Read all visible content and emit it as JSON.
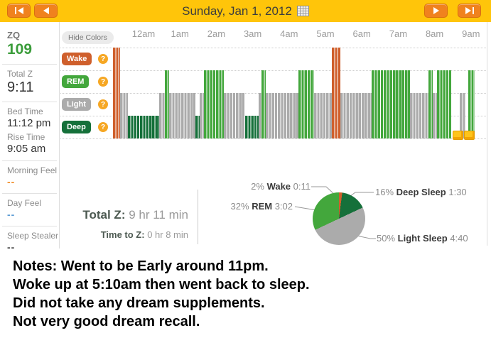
{
  "topbar": {
    "date": "Sunday, Jan 1, 2012"
  },
  "sidebar": {
    "stats": [
      {
        "id": "zq",
        "label": "ZQ",
        "value": "109",
        "style": "zq",
        "divider_before": false
      },
      {
        "id": "total-z",
        "label": "Total Z",
        "value": "9:11",
        "style": "big",
        "divider_before": true
      },
      {
        "id": "bed-time",
        "label": "Bed Time",
        "value": "11:12 pm",
        "style": "time",
        "divider_before": true
      },
      {
        "id": "rise-time",
        "label": "Rise Time",
        "value": "9:05 am",
        "style": "time",
        "divider_before": false
      },
      {
        "id": "morning-feel",
        "label": "Morning Feel",
        "value": "--",
        "style": "feel-orange",
        "divider_before": true
      },
      {
        "id": "day-feel",
        "label": "Day Feel",
        "value": "--",
        "style": "feel-blue",
        "divider_before": true
      },
      {
        "id": "sleep-stealer",
        "label": "Sleep Stealer",
        "value": "--",
        "style": "feel-dark",
        "divider_before": true
      }
    ]
  },
  "chart": {
    "hide_colors_label": "Hide Colors",
    "hours": [
      "12am",
      "1am",
      "2am",
      "3am",
      "4am",
      "5am",
      "6am",
      "7am",
      "8am",
      "9am"
    ],
    "help_icon": "?",
    "stages": [
      {
        "key": "wake",
        "label": "Wake",
        "color": "#cf5f2c"
      },
      {
        "key": "rem",
        "label": "REM",
        "color": "#43a73c"
      },
      {
        "key": "light",
        "label": "Light",
        "color": "#ababab"
      },
      {
        "key": "deep",
        "label": "Deep",
        "color": "#15703a"
      }
    ],
    "segments": [
      {
        "stage": "wake",
        "start": "23:10",
        "end": "23:21"
      },
      {
        "stage": "light",
        "start": "23:21",
        "end": "23:34"
      },
      {
        "stage": "deep",
        "start": "23:34",
        "end": "0:26"
      },
      {
        "stage": "light",
        "start": "0:26",
        "end": "0:35"
      },
      {
        "stage": "rem",
        "start": "0:35",
        "end": "0:42"
      },
      {
        "stage": "light",
        "start": "0:42",
        "end": "1:26"
      },
      {
        "stage": "deep",
        "start": "1:26",
        "end": "1:33"
      },
      {
        "stage": "light",
        "start": "1:33",
        "end": "1:40"
      },
      {
        "stage": "rem",
        "start": "1:40",
        "end": "2:13"
      },
      {
        "stage": "light",
        "start": "2:13",
        "end": "2:48"
      },
      {
        "stage": "deep",
        "start": "2:48",
        "end": "3:10"
      },
      {
        "stage": "light",
        "start": "3:10",
        "end": "3:15"
      },
      {
        "stage": "rem",
        "start": "3:15",
        "end": "3:21"
      },
      {
        "stage": "light",
        "start": "3:21",
        "end": "4:16"
      },
      {
        "stage": "rem",
        "start": "4:16",
        "end": "4:41"
      },
      {
        "stage": "light",
        "start": "4:41",
        "end": "5:10"
      },
      {
        "stage": "wake",
        "start": "5:10",
        "end": "5:25"
      },
      {
        "stage": "light",
        "start": "5:25",
        "end": "6:16"
      },
      {
        "stage": "rem",
        "start": "6:16",
        "end": "7:20"
      },
      {
        "stage": "light",
        "start": "7:20",
        "end": "7:50"
      },
      {
        "stage": "rem",
        "start": "7:50",
        "end": "7:57"
      },
      {
        "stage": "light",
        "start": "7:57",
        "end": "8:04"
      },
      {
        "stage": "rem",
        "start": "8:04",
        "end": "8:28"
      },
      {
        "stage": "light",
        "start": "8:42",
        "end": "8:51"
      },
      {
        "stage": "rem",
        "start": "8:56",
        "end": "9:06"
      }
    ],
    "markers": [
      {
        "time": "8:30"
      },
      {
        "time": "8:48"
      }
    ]
  },
  "summary": {
    "total_z_label": "Total Z:",
    "total_z_value": "9 hr 11 min",
    "time_to_z_label": "Time to Z:",
    "time_to_z_value": "0 hr 8 min"
  },
  "chart_data": {
    "type": "pie",
    "title": "Sleep stage distribution",
    "slices": [
      {
        "stage": "wake",
        "pct": "2%",
        "label": "Wake",
        "duration": "0:11",
        "value": 2
      },
      {
        "stage": "deep",
        "pct": "16%",
        "label": "Deep Sleep",
        "duration": "1:30",
        "value": 16
      },
      {
        "stage": "light",
        "pct": "50%",
        "label": "Light Sleep",
        "duration": "4:40",
        "value": 50
      },
      {
        "stage": "rem",
        "pct": "32%",
        "label": "REM",
        "duration": "3:02",
        "value": 32
      }
    ]
  },
  "notes": {
    "lines": [
      "Notes: Went to be Early around 11pm.",
      "Woke up at 5:10am then went back to sleep.",
      "Did not take any dream supplements.",
      "Not very good dream recall."
    ]
  },
  "colors": {
    "topbar_yellow": "#ffc50a",
    "button_orange": "#f0821e",
    "zq_green": "#3a9c3a",
    "help_orange": "#f6a723",
    "marker_yellow": "#fec41a"
  }
}
